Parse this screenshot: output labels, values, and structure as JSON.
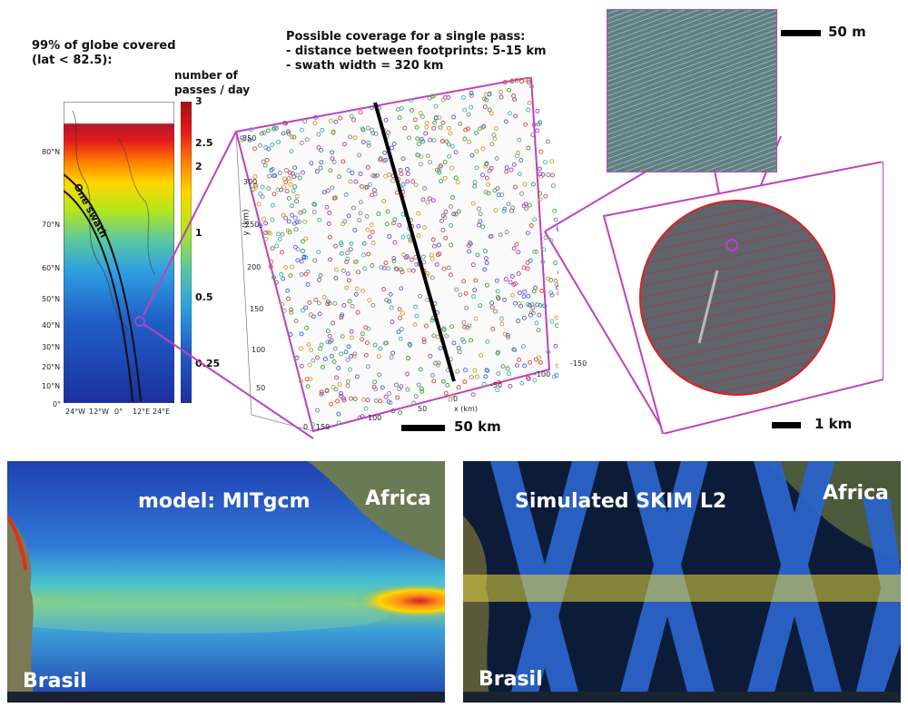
{
  "globe": {
    "coverage_line1": "99% of globe covered",
    "coverage_line2": "(lat < 82.5):",
    "lat_ticks": [
      "80°N",
      "70°N",
      "60°N",
      "50°N",
      "40°N",
      "30°N",
      "20°N",
      "10°N",
      "0°"
    ],
    "lon_ticks": [
      "24°W",
      "12°W",
      "0°",
      "12°E",
      "24°E"
    ],
    "swath_label": "One swath"
  },
  "colorbar": {
    "title_line1": "number of",
    "title_line2": "passes / day",
    "ticks": [
      "3",
      "2.5",
      "2",
      "1",
      "0.5",
      "0.25"
    ],
    "colors": [
      "#b2182b",
      "#e41a1c",
      "#ff7f00",
      "#ffd700",
      "#b5e61d",
      "#5ac8a0",
      "#2fa0e0",
      "#2060c8",
      "#1c2fa0"
    ]
  },
  "single_pass": {
    "title": "Possible coverage for a single pass:",
    "line1": "- distance between footprints: 5-15 km",
    "line2": "- swath width = 320 km",
    "y_label": "y (km)",
    "x_label": "x (km)",
    "y_ticks": [
      "350",
      "300",
      "250",
      "200",
      "150",
      "100",
      "50",
      "0"
    ],
    "x_ticks": [
      "150",
      "100",
      "50",
      "0",
      "-50",
      "-100",
      "-150"
    ],
    "scale_label": "50 km"
  },
  "footprint": {
    "scale_label": "1 km"
  },
  "zoom": {
    "scale_label": "50 m"
  },
  "bottom_left": {
    "title": "model: MITgcm",
    "africa": "Africa",
    "brasil": "Brasil"
  },
  "bottom_right": {
    "title": "Simulated SKIM L2",
    "africa": "Africa",
    "brasil": "Brasil"
  }
}
